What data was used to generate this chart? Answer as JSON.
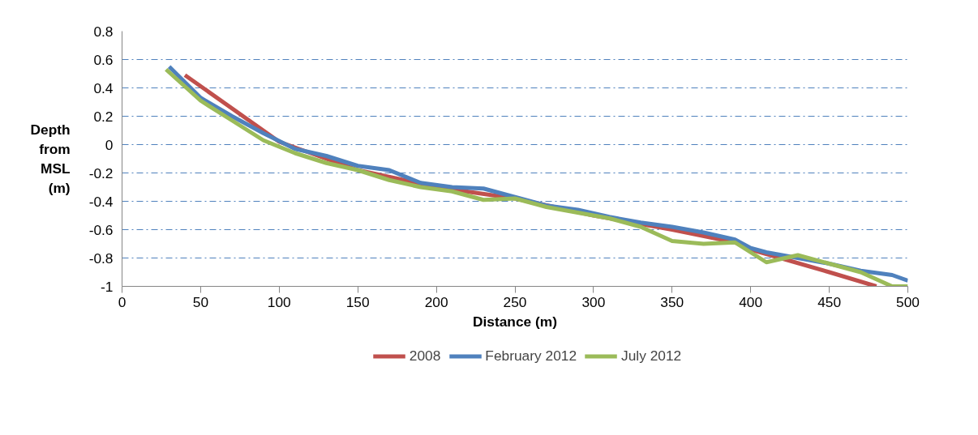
{
  "chart_data": {
    "type": "line",
    "xlabel": "Distance (m)",
    "ylabel": "Depth from MSL (m)",
    "xlim": [
      0,
      500
    ],
    "xticks": [
      0,
      50,
      100,
      150,
      200,
      250,
      300,
      350,
      400,
      450,
      500
    ],
    "ylim": [
      -1,
      0.8
    ],
    "yticks": [
      -1,
      -0.8,
      -0.6,
      -0.4,
      -0.2,
      0,
      0.2,
      0.4,
      0.6,
      0.8
    ],
    "grid": "y",
    "legend": "bottom",
    "marker": "none",
    "line_style": "solid",
    "series": [
      {
        "name": "2008",
        "color": "#c0504d",
        "x": [
          40,
          100,
          150,
          200,
          250,
          300,
          350,
          390,
          400,
          450,
          480
        ],
        "values": [
          0.49,
          0.02,
          -0.18,
          -0.3,
          -0.38,
          -0.5,
          -0.6,
          -0.69,
          -0.74,
          -0.9,
          -1.0
        ]
      },
      {
        "name": "February 2012",
        "color": "#4f81bd",
        "x": [
          30,
          50,
          70,
          90,
          110,
          130,
          150,
          170,
          190,
          210,
          230,
          250,
          270,
          290,
          310,
          330,
          350,
          370,
          390,
          400,
          410,
          430,
          450,
          470,
          490,
          500
        ],
        "values": [
          0.55,
          0.33,
          0.2,
          0.08,
          -0.03,
          -0.08,
          -0.15,
          -0.18,
          -0.27,
          -0.3,
          -0.31,
          -0.37,
          -0.43,
          -0.46,
          -0.51,
          -0.55,
          -0.58,
          -0.62,
          -0.67,
          -0.73,
          -0.76,
          -0.8,
          -0.84,
          -0.89,
          -0.92,
          -0.96
        ]
      },
      {
        "name": "July 2012",
        "color": "#9bbb59",
        "x": [
          28,
          50,
          70,
          90,
          110,
          130,
          150,
          170,
          190,
          210,
          230,
          250,
          270,
          290,
          310,
          330,
          350,
          370,
          390,
          410,
          430,
          450,
          470,
          490,
          500
        ],
        "values": [
          0.53,
          0.31,
          0.17,
          0.03,
          -0.06,
          -0.13,
          -0.18,
          -0.25,
          -0.3,
          -0.33,
          -0.39,
          -0.38,
          -0.44,
          -0.48,
          -0.52,
          -0.58,
          -0.68,
          -0.7,
          -0.69,
          -0.83,
          -0.78,
          -0.84,
          -0.9,
          -1.0,
          -1.0
        ]
      }
    ]
  }
}
